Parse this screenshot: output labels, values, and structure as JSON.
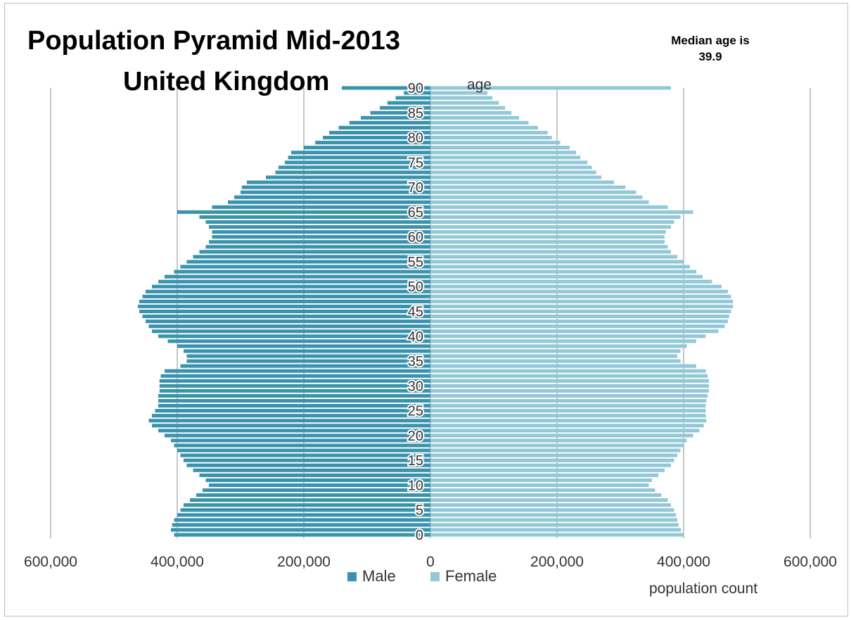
{
  "title_line1": "Population Pyramid Mid-2013",
  "title_line2": "United Kingdom",
  "median_line1": "Median age is",
  "median_line2": "39.9",
  "legend": {
    "male": "Male",
    "female": "Female"
  },
  "colors": {
    "male": "#3a93ad",
    "female": "#93c8d8",
    "grid": "#8c8c8c"
  },
  "chart_data": {
    "type": "bar",
    "orientation": "horizontal",
    "title": "Population Pyramid Mid-2013 United Kingdom",
    "xlabel": "population count",
    "ylabel": "age",
    "xlim": [
      -600000,
      600000
    ],
    "x_ticks": [
      "600,000",
      "400,000",
      "200,000",
      "0",
      "200,000",
      "400,000",
      "600,000"
    ],
    "y_ticks": [
      "0",
      "5",
      "10",
      "15",
      "20",
      "25",
      "30",
      "35",
      "40",
      "45",
      "50",
      "55",
      "60",
      "65",
      "70",
      "75",
      "80",
      "85",
      "90"
    ],
    "categories": [
      0,
      1,
      2,
      3,
      4,
      5,
      6,
      7,
      8,
      9,
      10,
      11,
      12,
      13,
      14,
      15,
      16,
      17,
      18,
      19,
      20,
      21,
      22,
      23,
      24,
      25,
      26,
      27,
      28,
      29,
      30,
      31,
      32,
      33,
      34,
      35,
      36,
      37,
      38,
      39,
      40,
      41,
      42,
      43,
      44,
      45,
      46,
      47,
      48,
      49,
      50,
      51,
      52,
      53,
      54,
      55,
      56,
      57,
      58,
      59,
      60,
      61,
      62,
      63,
      64,
      65,
      66,
      67,
      68,
      69,
      70,
      71,
      72,
      73,
      74,
      75,
      76,
      77,
      78,
      79,
      80,
      81,
      82,
      83,
      84,
      85,
      86,
      87,
      88,
      89,
      90
    ],
    "series": [
      {
        "name": "Male",
        "values": [
          405000,
          410000,
          408000,
          405000,
          400000,
          395000,
          390000,
          380000,
          370000,
          360000,
          350000,
          355000,
          365000,
          375000,
          385000,
          390000,
          395000,
          400000,
          405000,
          410000,
          420000,
          430000,
          440000,
          445000,
          440000,
          435000,
          430000,
          430000,
          430000,
          428000,
          428000,
          428000,
          426000,
          420000,
          395000,
          385000,
          385000,
          390000,
          400000,
          415000,
          430000,
          440000,
          445000,
          450000,
          455000,
          460000,
          462000,
          460000,
          455000,
          450000,
          440000,
          430000,
          420000,
          405000,
          395000,
          385000,
          375000,
          365000,
          355000,
          350000,
          345000,
          345000,
          350000,
          355000,
          365000,
          400000,
          345000,
          320000,
          310000,
          300000,
          298000,
          290000,
          260000,
          245000,
          240000,
          230000,
          225000,
          220000,
          200000,
          182000,
          170000,
          160000,
          145000,
          128000,
          110000,
          95000,
          80000,
          68000,
          55000,
          42000,
          140000
        ]
      },
      {
        "name": "Female",
        "values": [
          400000,
          396000,
          392000,
          390000,
          388000,
          385000,
          380000,
          375000,
          365000,
          355000,
          345000,
          350000,
          360000,
          370000,
          380000,
          385000,
          390000,
          395000,
          400000,
          405000,
          415000,
          425000,
          432000,
          436000,
          435000,
          435000,
          435000,
          436000,
          438000,
          440000,
          440000,
          440000,
          438000,
          435000,
          420000,
          395000,
          390000,
          395000,
          405000,
          420000,
          435000,
          455000,
          465000,
          470000,
          472000,
          475000,
          478000,
          478000,
          475000,
          470000,
          460000,
          445000,
          430000,
          420000,
          410000,
          400000,
          390000,
          380000,
          375000,
          370000,
          370000,
          372000,
          380000,
          385000,
          395000,
          415000,
          375000,
          345000,
          335000,
          325000,
          308000,
          290000,
          270000,
          262000,
          255000,
          248000,
          237000,
          230000,
          220000,
          205000,
          192000,
          185000,
          170000,
          155000,
          140000,
          128000,
          118000,
          108000,
          98000,
          90000,
          380000
        ]
      }
    ]
  }
}
